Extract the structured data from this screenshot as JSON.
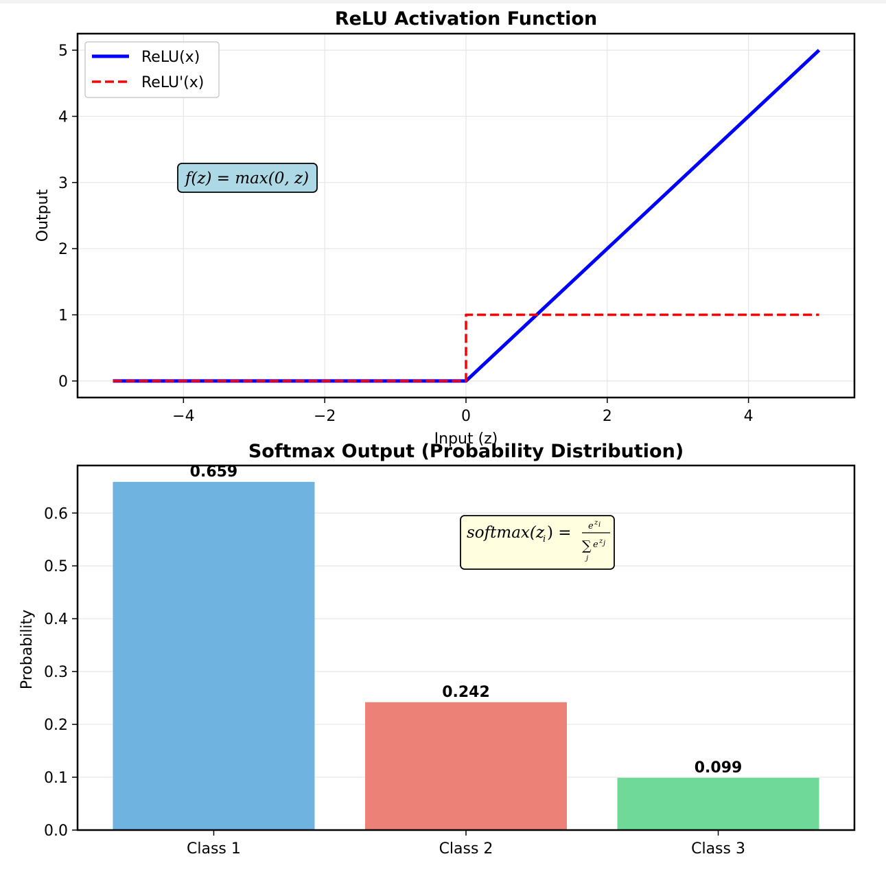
{
  "chart_data": [
    {
      "type": "line",
      "title": "ReLU Activation Function",
      "xlabel": "Input (z)",
      "ylabel": "Output",
      "xlim": [
        -5.5,
        5.5
      ],
      "ylim": [
        -0.25,
        5.25
      ],
      "xticks": [
        -4,
        -2,
        0,
        2,
        4
      ],
      "xtick_labels": [
        "−4",
        "−2",
        "0",
        "2",
        "4"
      ],
      "yticks": [
        0,
        1,
        2,
        3,
        4,
        5
      ],
      "ytick_labels": [
        "0",
        "1",
        "2",
        "3",
        "4",
        "5"
      ],
      "grid": true,
      "legend_position": "upper-left",
      "series": [
        {
          "name": "ReLU(x)",
          "color": "#0000ff",
          "style": "solid",
          "x": [
            -5,
            0,
            5
          ],
          "y": [
            0,
            0,
            5
          ]
        },
        {
          "name": "ReLU'(x)",
          "color": "#ff0000",
          "style": "dashed",
          "x": [
            -5,
            0,
            0,
            5
          ],
          "y": [
            0,
            0,
            1,
            1
          ]
        }
      ],
      "annotation": {
        "text": "f(z) = max(0, z)",
        "x": -3,
        "y": 3,
        "box_color": "#add8e6"
      }
    },
    {
      "type": "bar",
      "title": "Softmax Output (Probability Distribution)",
      "xlabel": "",
      "ylabel": "Probability",
      "categories": [
        "Class 1",
        "Class 2",
        "Class 3"
      ],
      "values": [
        0.659,
        0.242,
        0.099
      ],
      "value_labels": [
        "0.659",
        "0.242",
        "0.099"
      ],
      "colors": [
        "#6fb3e0",
        "#ec8277",
        "#6fd99a"
      ],
      "ylim": [
        0,
        0.69
      ],
      "yticks": [
        0,
        0.1,
        0.2,
        0.3,
        0.4,
        0.5,
        0.6
      ],
      "ytick_labels": [
        "0.0",
        "0.1",
        "0.2",
        "0.3",
        "0.4",
        "0.5",
        "0.6"
      ],
      "grid": true,
      "annotation": {
        "text": "softmax(z_i) = e^{z_i} / Σ_j e^{z_j}",
        "box_color": "#ffffe0"
      }
    }
  ]
}
